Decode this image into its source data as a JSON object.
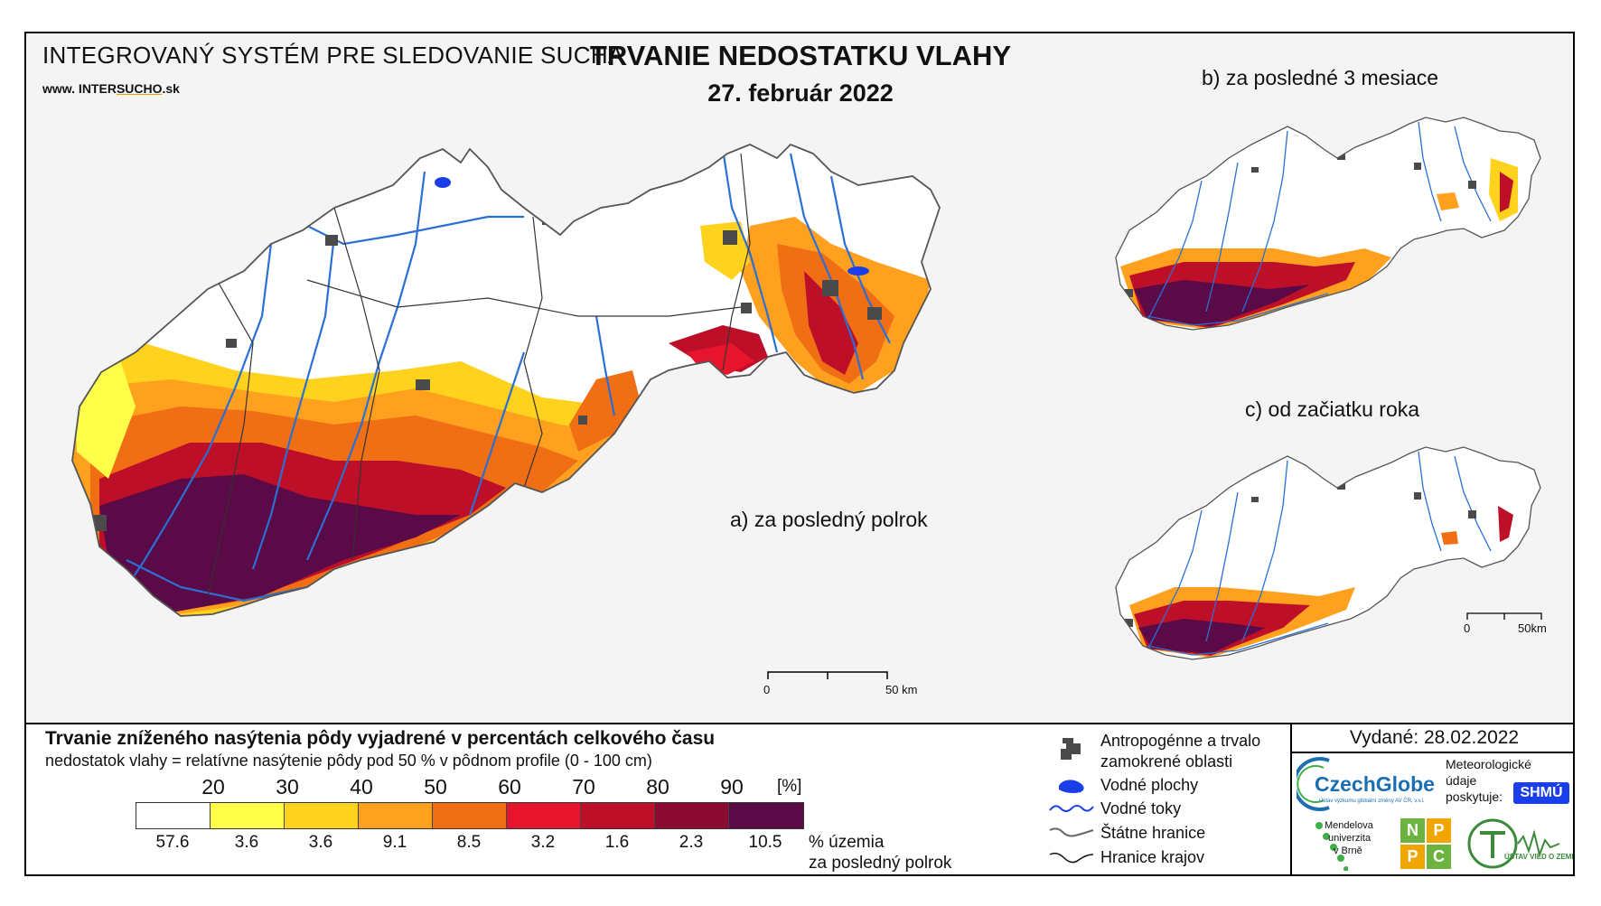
{
  "header": {
    "system_title": "INTEGROVANÝ SYSTÉM PRE SLEDOVANIE SUCHA",
    "website_prefix": "www. INTER",
    "website_highlight": "SUCHO",
    "website_suffix": ".sk",
    "title": "TRVANIE NEDOSTATKU VLAHY",
    "date": "27. február 2022"
  },
  "panels": {
    "a_label": "a) za posledný polrok",
    "b_label": "b) za posledné 3 mesiace",
    "c_label": "c) od začiatku roka"
  },
  "scalebars": {
    "main_zero": "0",
    "main_end": "50 km",
    "small_zero": "0",
    "small_end": "50km"
  },
  "legend": {
    "title": "Trvanie zníženého nasýtenia pôdy vyjadrené v percentách celkového času",
    "subtitle": "nedostatok vlahy = relatívne nasýtenie pôdy pod 50 % v pôdnom profile (0 - 100 cm)",
    "thresholds": [
      "20",
      "30",
      "40",
      "50",
      "60",
      "70",
      "80",
      "90"
    ],
    "unit": "[%]",
    "classes": [
      {
        "color": "#ffffff",
        "percent": "57.6"
      },
      {
        "color": "#ffff4a",
        "percent": "3.6"
      },
      {
        "color": "#ffd21e",
        "percent": "3.6"
      },
      {
        "color": "#ffa01e",
        "percent": "9.1"
      },
      {
        "color": "#f06e14",
        "percent": "8.5"
      },
      {
        "color": "#e6142d",
        "percent": "3.2"
      },
      {
        "color": "#be0f28",
        "percent": "1.6"
      },
      {
        "color": "#8c0a32",
        "percent": "2.3"
      },
      {
        "color": "#5a0a46",
        "percent": "10.5"
      }
    ],
    "area_note_line1": "% územia",
    "area_note_line2": "za posledný polrok"
  },
  "key": {
    "anthropogenic_line1": "Antropogénne a trvalo",
    "anthropogenic_line2": "zamokrené oblasti",
    "water_bodies": "Vodné plochy",
    "rivers": "Vodné toky",
    "state_border": "Štátne hranice",
    "region_border": "Hranice krajov"
  },
  "credits": {
    "issued": "Vydané: 28.02.2022",
    "czechglobe": "CzechGlobe",
    "czechglobe_sub": "Ústav výzkumu globální změny AV ČR, v.v.i.",
    "met_line1": "Meteorologické",
    "met_line2": "údaje",
    "met_line3": "poskytuje:",
    "shmu": "SHMÚ",
    "mendel_line1": "Mendelova",
    "mendel_line2": "univerzita",
    "mendel_line3": "v Brně",
    "nppc": [
      "N",
      "P",
      "P",
      "C"
    ],
    "uvz": "ÚSTAV VIED O ZEMI"
  },
  "colors": {
    "river": "#2a6fd6",
    "anthropogenic": "#4a4a4a",
    "border": "#333333"
  }
}
